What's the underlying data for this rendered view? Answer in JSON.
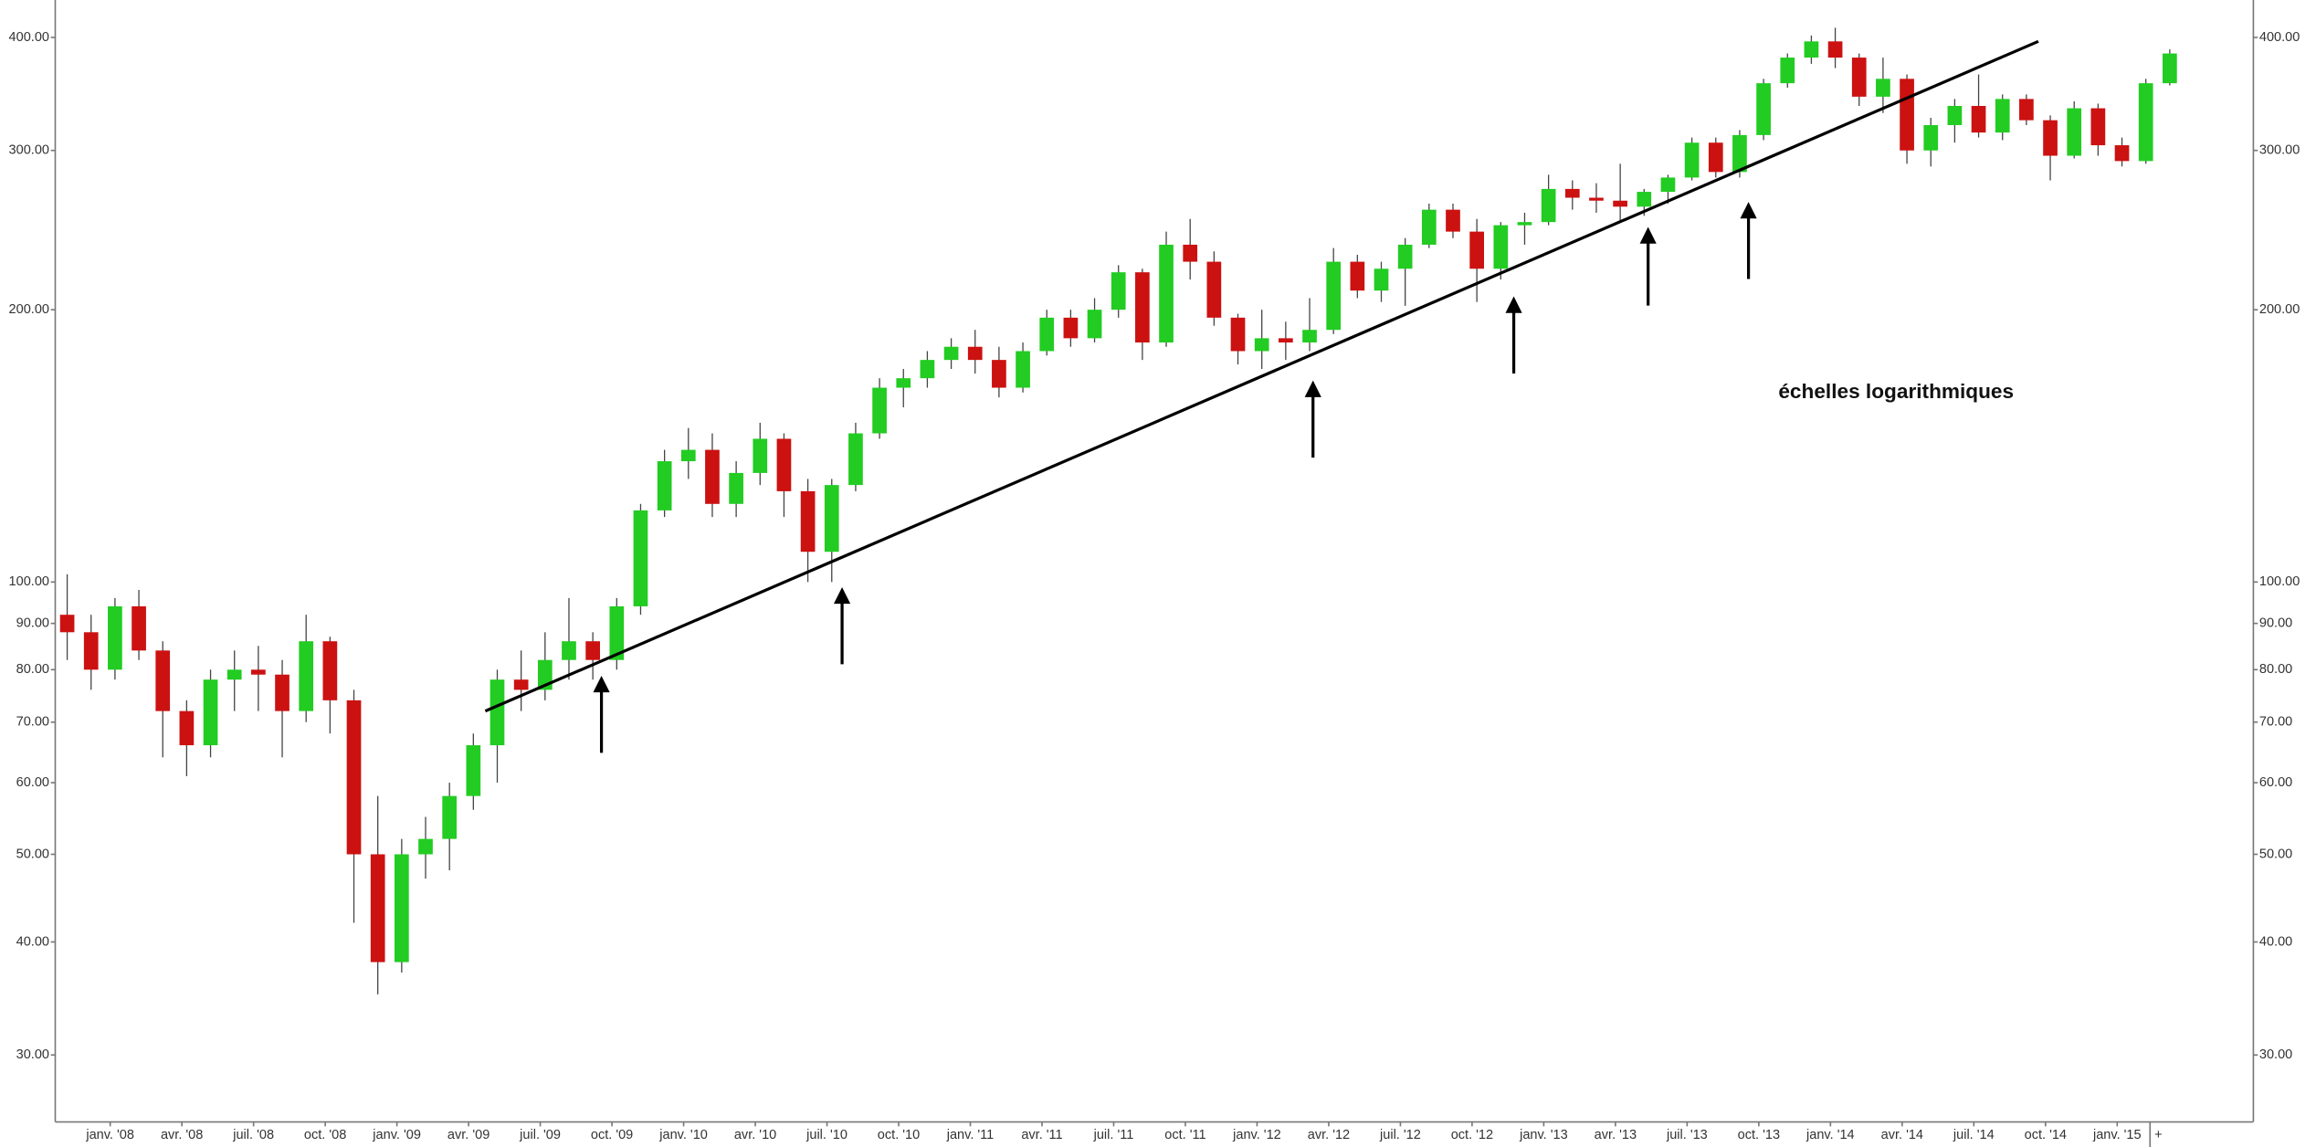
{
  "chart_data": {
    "type": "candlestick",
    "annotation": "échelles logarithmiques",
    "more_button": "+",
    "log_scale": true,
    "up_color": "#22cc22",
    "down_color": "#cc1111",
    "ylim": [
      25.3,
      440
    ],
    "yticks": [
      {
        "value": 30,
        "label": "30.00"
      },
      {
        "value": 40,
        "label": "40.00"
      },
      {
        "value": 50,
        "label": "50.00"
      },
      {
        "value": 60,
        "label": "60.00"
      },
      {
        "value": 70,
        "label": "70.00"
      },
      {
        "value": 80,
        "label": "80.00"
      },
      {
        "value": 90,
        "label": "90.00"
      },
      {
        "value": 100,
        "label": "100.00"
      },
      {
        "value": 200,
        "label": "200.00"
      },
      {
        "value": 300,
        "label": "300.00"
      },
      {
        "value": 400,
        "label": "400.00"
      }
    ],
    "xlim": [
      "2007-11",
      "2015-07"
    ],
    "xticks": [
      {
        "value": "2008-01",
        "label": "janv. '08"
      },
      {
        "value": "2008-04",
        "label": "avr. '08"
      },
      {
        "value": "2008-07",
        "label": "juil. '08"
      },
      {
        "value": "2008-10",
        "label": "oct. '08"
      },
      {
        "value": "2009-01",
        "label": "janv. '09"
      },
      {
        "value": "2009-04",
        "label": "avr. '09"
      },
      {
        "value": "2009-07",
        "label": "juil. '09"
      },
      {
        "value": "2009-10",
        "label": "oct. '09"
      },
      {
        "value": "2010-01",
        "label": "janv. '10"
      },
      {
        "value": "2010-04",
        "label": "avr. '10"
      },
      {
        "value": "2010-07",
        "label": "juil. '10"
      },
      {
        "value": "2010-10",
        "label": "oct. '10"
      },
      {
        "value": "2011-01",
        "label": "janv. '11"
      },
      {
        "value": "2011-04",
        "label": "avr. '11"
      },
      {
        "value": "2011-07",
        "label": "juil. '11"
      },
      {
        "value": "2011-10",
        "label": "oct. '11"
      },
      {
        "value": "2012-01",
        "label": "janv. '12"
      },
      {
        "value": "2012-04",
        "label": "avr. '12"
      },
      {
        "value": "2012-07",
        "label": "juil. '12"
      },
      {
        "value": "2012-10",
        "label": "oct. '12"
      },
      {
        "value": "2013-01",
        "label": "janv. '13"
      },
      {
        "value": "2013-04",
        "label": "avr. '13"
      },
      {
        "value": "2013-07",
        "label": "juil. '13"
      },
      {
        "value": "2013-10",
        "label": "oct. '13"
      },
      {
        "value": "2014-01",
        "label": "janv. '14"
      },
      {
        "value": "2014-04",
        "label": "avr. '14"
      },
      {
        "value": "2014-07",
        "label": "juil. '14"
      },
      {
        "value": "2014-10",
        "label": "oct. '14"
      },
      {
        "value": "2015-01",
        "label": "janv. '15"
      }
    ],
    "x": [
      "2007-11",
      "2007-12",
      "2008-01",
      "2008-02",
      "2008-03",
      "2008-04",
      "2008-05",
      "2008-06",
      "2008-07",
      "2008-08",
      "2008-09",
      "2008-10",
      "2008-11",
      "2008-12",
      "2009-01",
      "2009-02",
      "2009-03",
      "2009-04",
      "2009-05",
      "2009-06",
      "2009-07",
      "2009-08",
      "2009-09",
      "2009-10",
      "2009-11",
      "2009-12",
      "2010-01",
      "2010-02",
      "2010-03",
      "2010-04",
      "2010-05",
      "2010-06",
      "2010-07",
      "2010-08",
      "2010-09",
      "2010-10",
      "2010-11",
      "2010-12",
      "2011-01",
      "2011-02",
      "2011-03",
      "2011-04",
      "2011-05",
      "2011-06",
      "2011-07",
      "2011-08",
      "2011-09",
      "2011-10",
      "2011-11",
      "2011-12",
      "2012-01",
      "2012-02",
      "2012-03",
      "2012-04",
      "2012-05",
      "2012-06",
      "2012-07",
      "2012-08",
      "2012-09",
      "2012-10",
      "2012-11",
      "2012-12",
      "2013-01",
      "2013-02",
      "2013-03",
      "2013-04",
      "2013-05",
      "2013-06",
      "2013-07",
      "2013-08",
      "2013-09",
      "2013-10",
      "2013-11",
      "2013-12",
      "2014-01",
      "2014-02",
      "2014-03",
      "2014-04",
      "2014-05",
      "2014-06",
      "2014-07",
      "2014-08",
      "2014-09",
      "2014-10",
      "2014-11",
      "2014-12",
      "2015-01",
      "2015-02",
      "2015-03"
    ],
    "open": [
      92,
      88,
      80,
      94,
      84,
      72,
      66,
      78,
      80,
      79,
      72,
      86,
      74,
      50,
      38,
      50,
      52,
      58,
      66,
      78,
      76,
      82,
      86,
      82,
      94,
      120,
      136,
      140,
      122,
      132,
      144,
      126,
      108,
      128,
      146,
      164,
      168,
      176,
      182,
      176,
      164,
      180,
      196,
      186,
      200,
      220,
      184,
      236,
      226,
      196,
      180,
      186,
      184,
      190,
      226,
      210,
      222,
      236,
      258,
      244,
      222,
      248,
      250,
      272,
      266,
      264,
      260,
      270,
      280,
      306,
      284,
      312,
      356,
      380,
      396,
      380,
      344,
      360,
      300,
      320,
      336,
      314,
      342,
      324,
      296,
      334,
      304,
      292,
      356
    ],
    "high": [
      102,
      92,
      96,
      98,
      86,
      74,
      80,
      84,
      85,
      82,
      92,
      87,
      76,
      58,
      52,
      55,
      60,
      68,
      80,
      84,
      88,
      96,
      88,
      96,
      122,
      140,
      148,
      146,
      136,
      150,
      146,
      130,
      130,
      150,
      168,
      172,
      180,
      186,
      190,
      182,
      184,
      200,
      200,
      206,
      224,
      222,
      244,
      252,
      232,
      198,
      200,
      194,
      206,
      234,
      230,
      226,
      240,
      262,
      262,
      252,
      250,
      256,
      282,
      278,
      276,
      290,
      272,
      282,
      310,
      310,
      316,
      360,
      384,
      402,
      410,
      384,
      380,
      364,
      326,
      342,
      364,
      346,
      346,
      328,
      340,
      338,
      310,
      360,
      388
    ],
    "low": [
      82,
      76,
      78,
      82,
      64,
      61,
      64,
      72,
      72,
      64,
      70,
      68,
      42,
      35,
      37,
      47,
      48,
      56,
      60,
      72,
      74,
      78,
      78,
      80,
      92,
      118,
      130,
      118,
      118,
      128,
      118,
      100,
      100,
      126,
      144,
      156,
      164,
      172,
      170,
      160,
      162,
      178,
      182,
      184,
      196,
      176,
      182,
      216,
      192,
      174,
      172,
      176,
      180,
      188,
      206,
      204,
      202,
      234,
      240,
      204,
      216,
      236,
      248,
      258,
      256,
      250,
      254,
      262,
      278,
      280,
      280,
      308,
      352,
      374,
      370,
      336,
      330,
      290,
      288,
      306,
      310,
      308,
      320,
      278,
      294,
      296,
      288,
      290,
      354
    ],
    "close": [
      88,
      80,
      94,
      84,
      72,
      66,
      78,
      80,
      79,
      72,
      86,
      74,
      50,
      38,
      50,
      52,
      58,
      66,
      78,
      76,
      82,
      86,
      82,
      94,
      120,
      136,
      140,
      122,
      132,
      144,
      126,
      108,
      128,
      146,
      164,
      168,
      176,
      182,
      176,
      164,
      180,
      196,
      186,
      200,
      220,
      184,
      236,
      226,
      196,
      180,
      186,
      184,
      190,
      226,
      210,
      222,
      236,
      258,
      244,
      222,
      248,
      250,
      272,
      266,
      264,
      260,
      270,
      280,
      306,
      284,
      312,
      356,
      380,
      396,
      380,
      344,
      360,
      300,
      320,
      336,
      314,
      342,
      324,
      296,
      334,
      304,
      292,
      356,
      384
    ],
    "trendline": [
      {
        "x": "2009-05",
        "y": 72
      },
      {
        "x": "2014-10",
        "y": 396
      }
    ]
  }
}
